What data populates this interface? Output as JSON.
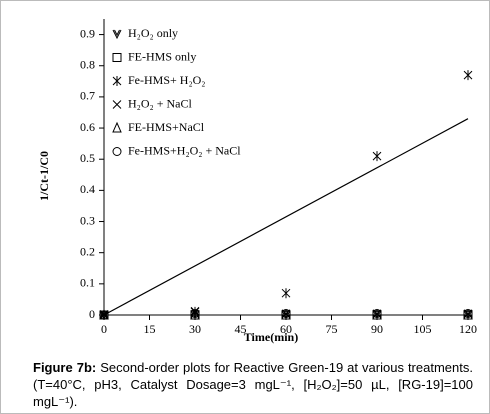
{
  "chart_data": {
    "type": "scatter",
    "x_label": "Time(min)",
    "y_label": "1/Ct-1/C0",
    "x": [
      0,
      30,
      60,
      90,
      120
    ],
    "series": [
      {
        "name": "H₂O₂ only",
        "marker": "check",
        "color": "#000000",
        "values": [
          0,
          0.003,
          0.002,
          0.003,
          0.003
        ]
      },
      {
        "name": "FE-HMS only",
        "marker": "square",
        "color": "#000000",
        "values": [
          0,
          0,
          0,
          0,
          0
        ]
      },
      {
        "name": "Fe-HMS+ H₂O₂",
        "marker": "asterisk",
        "color": "#000000",
        "values": [
          0,
          0.01,
          0.07,
          0.51,
          0.77
        ]
      },
      {
        "name": "H₂O₂ + NaCl",
        "marker": "cross",
        "color": "#000000",
        "values": [
          0.002,
          0.012,
          0.004,
          0.004,
          0.004
        ]
      },
      {
        "name": "FE-HMS+NaCl",
        "marker": "triangle",
        "color": "#000000",
        "values": [
          0,
          0,
          0,
          0,
          0
        ]
      },
      {
        "name": "Fe-HMS+H₂O₂ + NaCl",
        "marker": "circle",
        "color": "#000000",
        "values": [
          0,
          0.005,
          0.005,
          0.005,
          0.005
        ]
      }
    ],
    "trendline": {
      "x": [
        0,
        120
      ],
      "values": [
        0,
        0.63
      ],
      "color": "#000000"
    },
    "xlim": [
      0,
      120
    ],
    "xticks": [
      0,
      15,
      30,
      45,
      60,
      75,
      90,
      105,
      120
    ],
    "ylim": [
      0,
      0.95
    ],
    "yticks": [
      0,
      0.1,
      0.2,
      0.3,
      0.4,
      0.5,
      0.6,
      0.7,
      0.8,
      0.9
    ]
  },
  "caption": {
    "label": "Figure 7b:",
    "text": "Second-order plots for Reactive Green-19 at various treatments. (T=40°C, pH3, Catalyst Dosage=3 mgL⁻¹, [H₂O₂]=50 µL, [RG-19]=100 mgL⁻¹)."
  }
}
